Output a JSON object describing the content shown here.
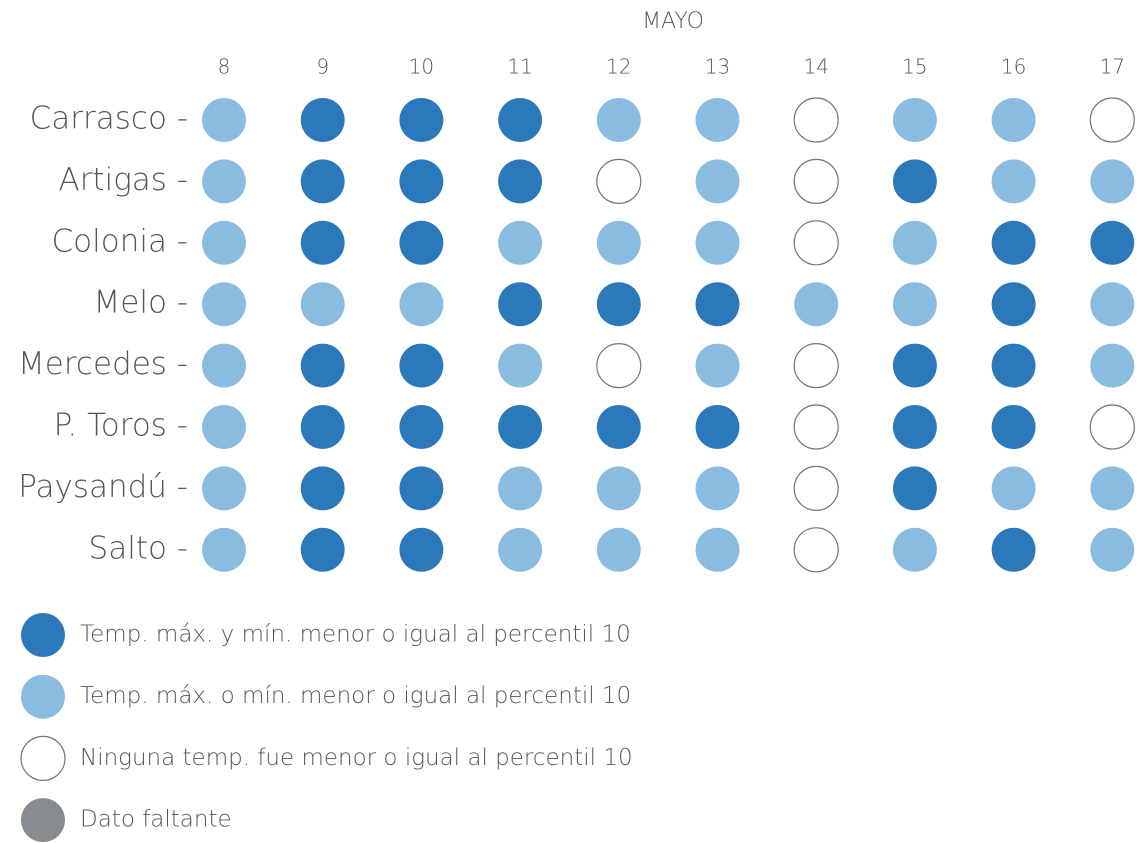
{
  "chart_data": {
    "type": "dot_grid",
    "title": "MAYO",
    "columns": [
      8,
      9,
      10,
      11,
      12,
      13,
      14,
      15,
      16,
      17
    ],
    "rows": [
      "Carrasco -",
      "Artigas -",
      "Colonia -",
      "Melo -",
      "Mercedes -",
      "P. Toros -",
      "Paysandú -",
      "Salto -"
    ],
    "legend": [
      {
        "name": "Temp. máx. y mín. menor o igual al percentil 10",
        "color": "#2b78bb"
      },
      {
        "name": "Temp. máx. o mín. menor o igual al percentil 10",
        "color": "#8abbe1"
      },
      {
        "name": "Ninguna temp. fue menor o igual al percentil 10",
        "color": "#ffffff"
      },
      {
        "name": "Dato faltante",
        "color": "#888c91"
      }
    ],
    "cells": [
      [
        1,
        0,
        0,
        0,
        1,
        1,
        2,
        1,
        1,
        2
      ],
      [
        1,
        0,
        0,
        0,
        2,
        1,
        2,
        0,
        1,
        1
      ],
      [
        1,
        0,
        0,
        1,
        1,
        1,
        2,
        1,
        0,
        0
      ],
      [
        1,
        1,
        1,
        0,
        0,
        0,
        1,
        1,
        0,
        1
      ],
      [
        1,
        0,
        0,
        1,
        2,
        1,
        2,
        0,
        0,
        1
      ],
      [
        1,
        0,
        0,
        0,
        0,
        0,
        2,
        0,
        0,
        2
      ],
      [
        1,
        0,
        0,
        1,
        1,
        1,
        2,
        0,
        1,
        1
      ],
      [
        1,
        0,
        0,
        1,
        1,
        1,
        2,
        1,
        0,
        1
      ]
    ]
  }
}
